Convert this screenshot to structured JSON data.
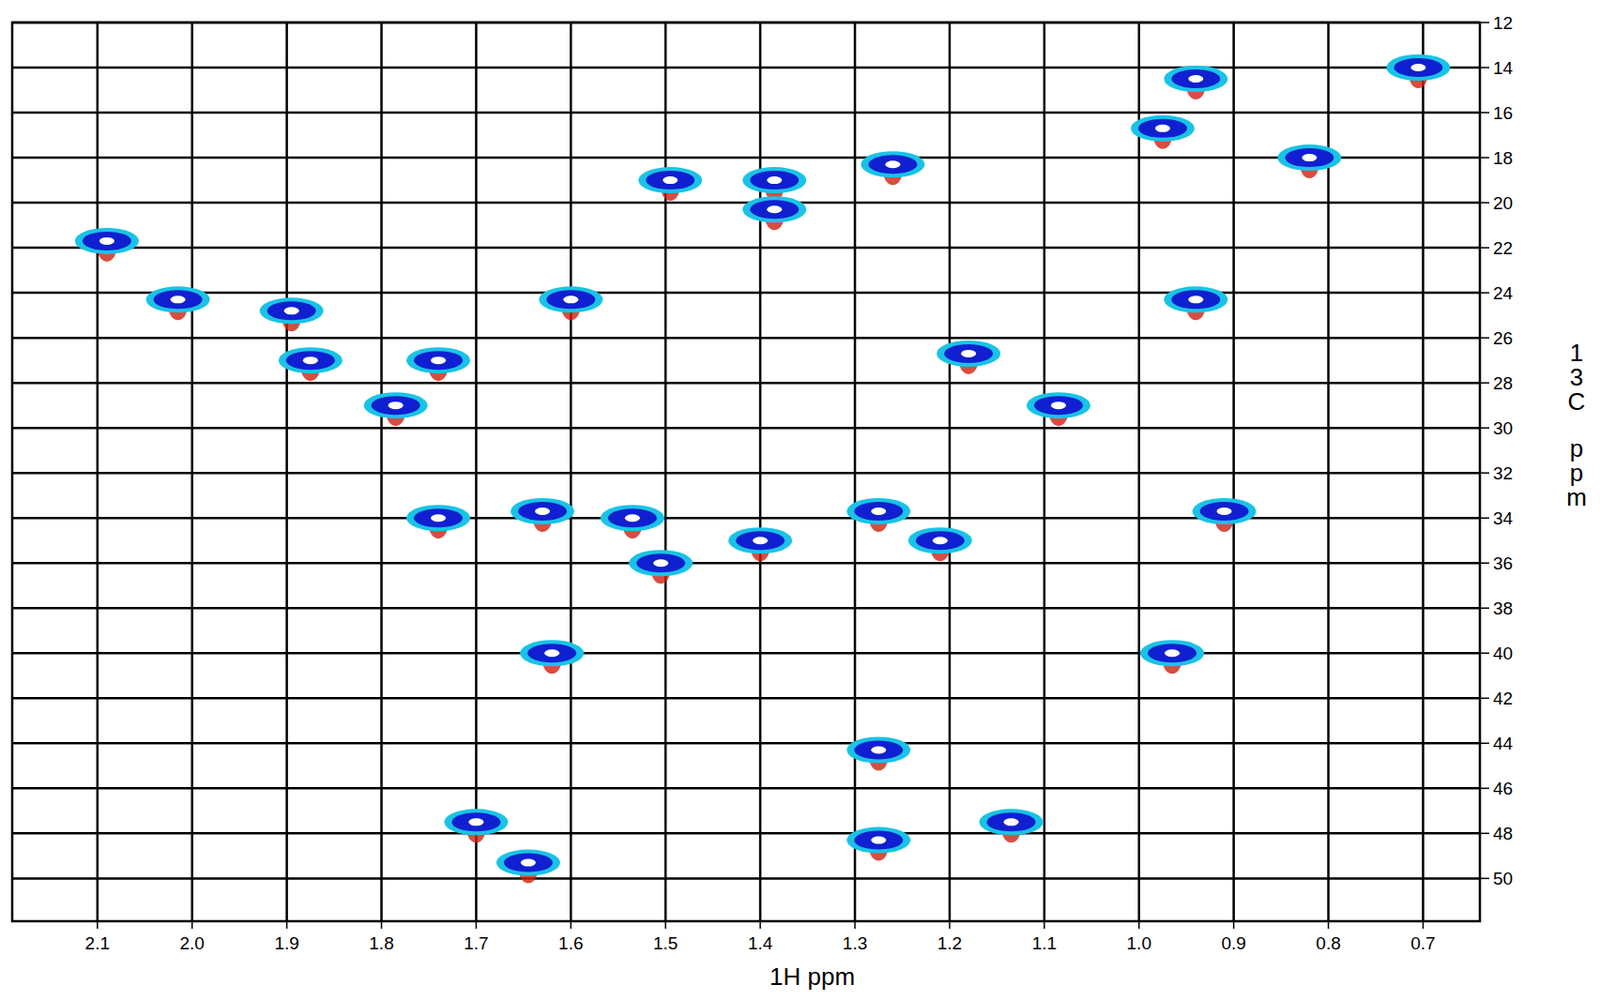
{
  "chart_data": {
    "type": "scatter",
    "x_label": "1H ppm",
    "y_label": "13C ppm",
    "x": [
      0.705,
      0.94,
      0.975,
      0.82,
      1.26,
      1.495,
      1.385,
      1.385,
      2.09,
      2.015,
      1.6,
      1.895,
      0.94,
      1.875,
      1.74,
      1.18,
      1.785,
      1.085,
      1.74,
      1.63,
      1.535,
      1.275,
      0.91,
      1.4,
      1.21,
      1.505,
      1.62,
      0.965,
      1.7,
      1.135,
      1.275,
      1.645,
      1.275
    ],
    "values": [
      14.0,
      14.5,
      16.7,
      18.0,
      18.3,
      19.0,
      19.0,
      20.3,
      21.7,
      24.3,
      24.3,
      24.8,
      24.3,
      27.0,
      27.0,
      26.7,
      29.0,
      29.0,
      34.0,
      33.7,
      34.0,
      33.7,
      33.7,
      35.0,
      35.0,
      36.0,
      40.0,
      40.0,
      47.5,
      47.5,
      48.3,
      49.3,
      44.3
    ],
    "color": "#1020d0",
    "xlim": [
      2.19,
      0.64
    ],
    "ylim": [
      51.9,
      12
    ],
    "xticks": [
      2.1,
      {
        "value": 2,
        "label": "2.0"
      },
      1.9,
      1.8,
      1.7,
      1.6,
      1.5,
      1.4,
      1.3,
      1.2,
      1.1,
      {
        "value": 1,
        "label": "1.0"
      },
      0.9,
      0.8,
      0.7
    ],
    "yticks": [
      12,
      14,
      16,
      18,
      20,
      22,
      24,
      26,
      28,
      30,
      32,
      34,
      36,
      38,
      40,
      42,
      44,
      46,
      48,
      50
    ],
    "grid": true
  }
}
